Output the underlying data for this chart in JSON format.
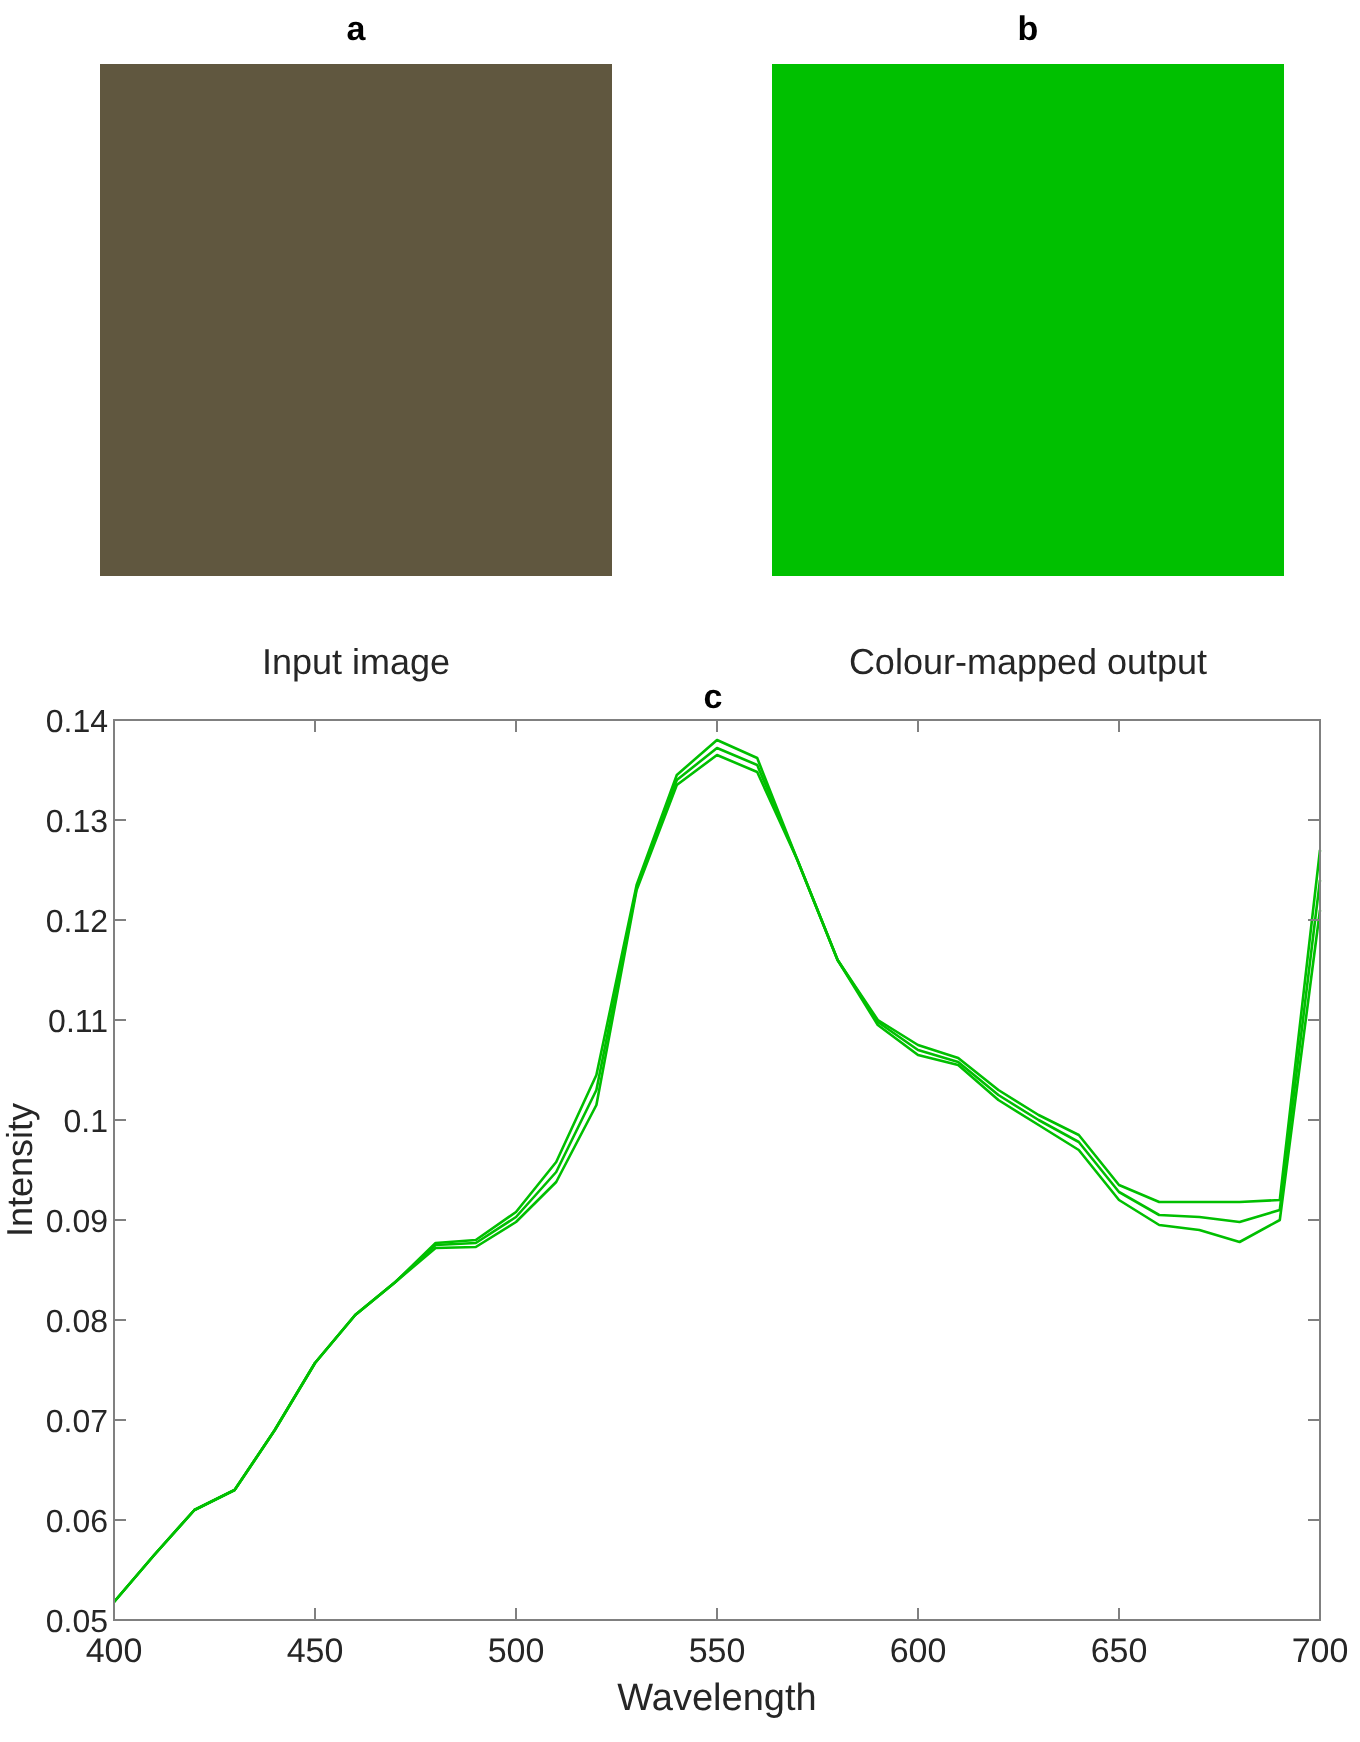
{
  "chart_data": [
    {
      "type": "other",
      "title": "a",
      "annotations": [
        "Input image"
      ]
    },
    {
      "type": "other",
      "title": "b",
      "annotations": [
        "Colour-mapped output"
      ]
    },
    {
      "type": "line",
      "title": "c",
      "xlabel": "Wavelength",
      "ylabel": "Intensity",
      "x": [
        400,
        410,
        420,
        430,
        440,
        450,
        460,
        470,
        480,
        490,
        500,
        510,
        520,
        530,
        540,
        550,
        560,
        570,
        580,
        590,
        600,
        610,
        620,
        630,
        640,
        650,
        660,
        670,
        680,
        690,
        700
      ],
      "xlim": [
        400,
        700
      ],
      "xticks": [
        400,
        450,
        500,
        550,
        600,
        650,
        700
      ],
      "ylim": [
        0.05,
        0.14
      ],
      "yticks": [
        0.05,
        0.06,
        0.07,
        0.08,
        0.09,
        0.1,
        0.11,
        0.12,
        0.13,
        0.14
      ],
      "grid": false,
      "marker": "none",
      "line_style": "solid",
      "series": [
        {
          "color": "#00bf00",
          "values": [
            0.0518,
            0.0565,
            0.061,
            0.063,
            0.069,
            0.0757,
            0.0805,
            0.0838,
            0.0877,
            0.088,
            0.0908,
            0.0958,
            0.1045,
            0.1235,
            0.1345,
            0.138,
            0.1362,
            0.126,
            0.116,
            0.11,
            0.1075,
            0.1062,
            0.103,
            0.1005,
            0.0985,
            0.0935,
            0.0918,
            0.0918,
            0.0918,
            0.092,
            0.127
          ]
        },
        {
          "color": "#00bf00",
          "values": [
            0.0518,
            0.0565,
            0.061,
            0.063,
            0.069,
            0.0757,
            0.0805,
            0.0838,
            0.0875,
            0.0877,
            0.0903,
            0.0948,
            0.103,
            0.1232,
            0.134,
            0.1372,
            0.1355,
            0.126,
            0.116,
            0.1098,
            0.107,
            0.1058,
            0.1025,
            0.1,
            0.0978,
            0.0928,
            0.0905,
            0.0903,
            0.0898,
            0.091,
            0.124
          ]
        },
        {
          "color": "#00bf00",
          "values": [
            0.0518,
            0.0565,
            0.061,
            0.063,
            0.069,
            0.0757,
            0.0805,
            0.0838,
            0.0872,
            0.0873,
            0.0898,
            0.0938,
            0.1015,
            0.123,
            0.1335,
            0.1365,
            0.1348,
            0.126,
            0.116,
            0.1095,
            0.1065,
            0.1055,
            0.102,
            0.0995,
            0.097,
            0.092,
            0.0895,
            0.089,
            0.0878,
            0.09,
            0.121
          ]
        }
      ]
    }
  ]
}
